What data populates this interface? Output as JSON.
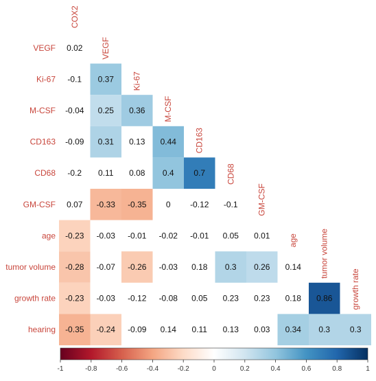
{
  "chart_data": {
    "type": "heatmap",
    "title": "",
    "variables": [
      "COX2",
      "VEGF",
      "Ki-67",
      "M-CSF",
      "CD163",
      "CD68",
      "GM-CSF",
      "age",
      "tumor volume",
      "growth rate",
      "hearing"
    ],
    "row_labels": [
      "VEGF",
      "Ki-67",
      "M-CSF",
      "CD163",
      "CD68",
      "GM-CSF",
      "age",
      "tumor volume",
      "growth rate",
      "hearing"
    ],
    "matrix": [
      [
        0.02
      ],
      [
        -0.1,
        0.37
      ],
      [
        -0.04,
        0.25,
        0.36
      ],
      [
        -0.09,
        0.31,
        0.13,
        0.44
      ],
      [
        -0.2,
        0.11,
        0.08,
        0.4,
        0.7
      ],
      [
        0.07,
        -0.33,
        -0.35,
        0,
        -0.12,
        -0.1
      ],
      [
        -0.23,
        -0.03,
        -0.01,
        -0.02,
        -0.01,
        0.05,
        0.01
      ],
      [
        -0.28,
        -0.07,
        -0.26,
        -0.03,
        0.18,
        0.3,
        0.26,
        0.14
      ],
      [
        -0.23,
        -0.03,
        -0.12,
        -0.08,
        0.05,
        0.23,
        0.23,
        0.18,
        0.86
      ],
      [
        -0.35,
        -0.24,
        -0.09,
        0.14,
        0.11,
        0.13,
        0.03,
        0.34,
        0.3,
        0.3
      ]
    ],
    "significant": [
      [
        false
      ],
      [
        false,
        true
      ],
      [
        false,
        true,
        true
      ],
      [
        false,
        true,
        false,
        true
      ],
      [
        false,
        false,
        false,
        true,
        true
      ],
      [
        false,
        true,
        true,
        false,
        false,
        false
      ],
      [
        true,
        false,
        false,
        false,
        false,
        false,
        false
      ],
      [
        true,
        false,
        true,
        false,
        false,
        true,
        true,
        false
      ],
      [
        true,
        false,
        false,
        false,
        false,
        false,
        false,
        false,
        true
      ],
      [
        true,
        true,
        false,
        false,
        false,
        false,
        false,
        true,
        true,
        true
      ]
    ],
    "colorbar": {
      "min": -1,
      "max": 1,
      "ticks": [
        -1,
        -0.8,
        -0.6,
        -0.4,
        -0.2,
        0,
        0.2,
        0.4,
        0.6,
        0.8,
        1
      ],
      "tick_labels": [
        "-1",
        "-0.8",
        "-0.6",
        "-0.4",
        "-0.2",
        "0",
        "0.2",
        "0.4",
        "0.6",
        "0.8",
        "1"
      ],
      "colors": [
        "#67001f",
        "#b2182b",
        "#d6604d",
        "#f4a582",
        "#fddbc7",
        "#ffffff",
        "#d1e5f0",
        "#92c5de",
        "#4393c3",
        "#2166ac",
        "#053061"
      ]
    },
    "label_color": "#c8453b",
    "legend": "bottom"
  }
}
